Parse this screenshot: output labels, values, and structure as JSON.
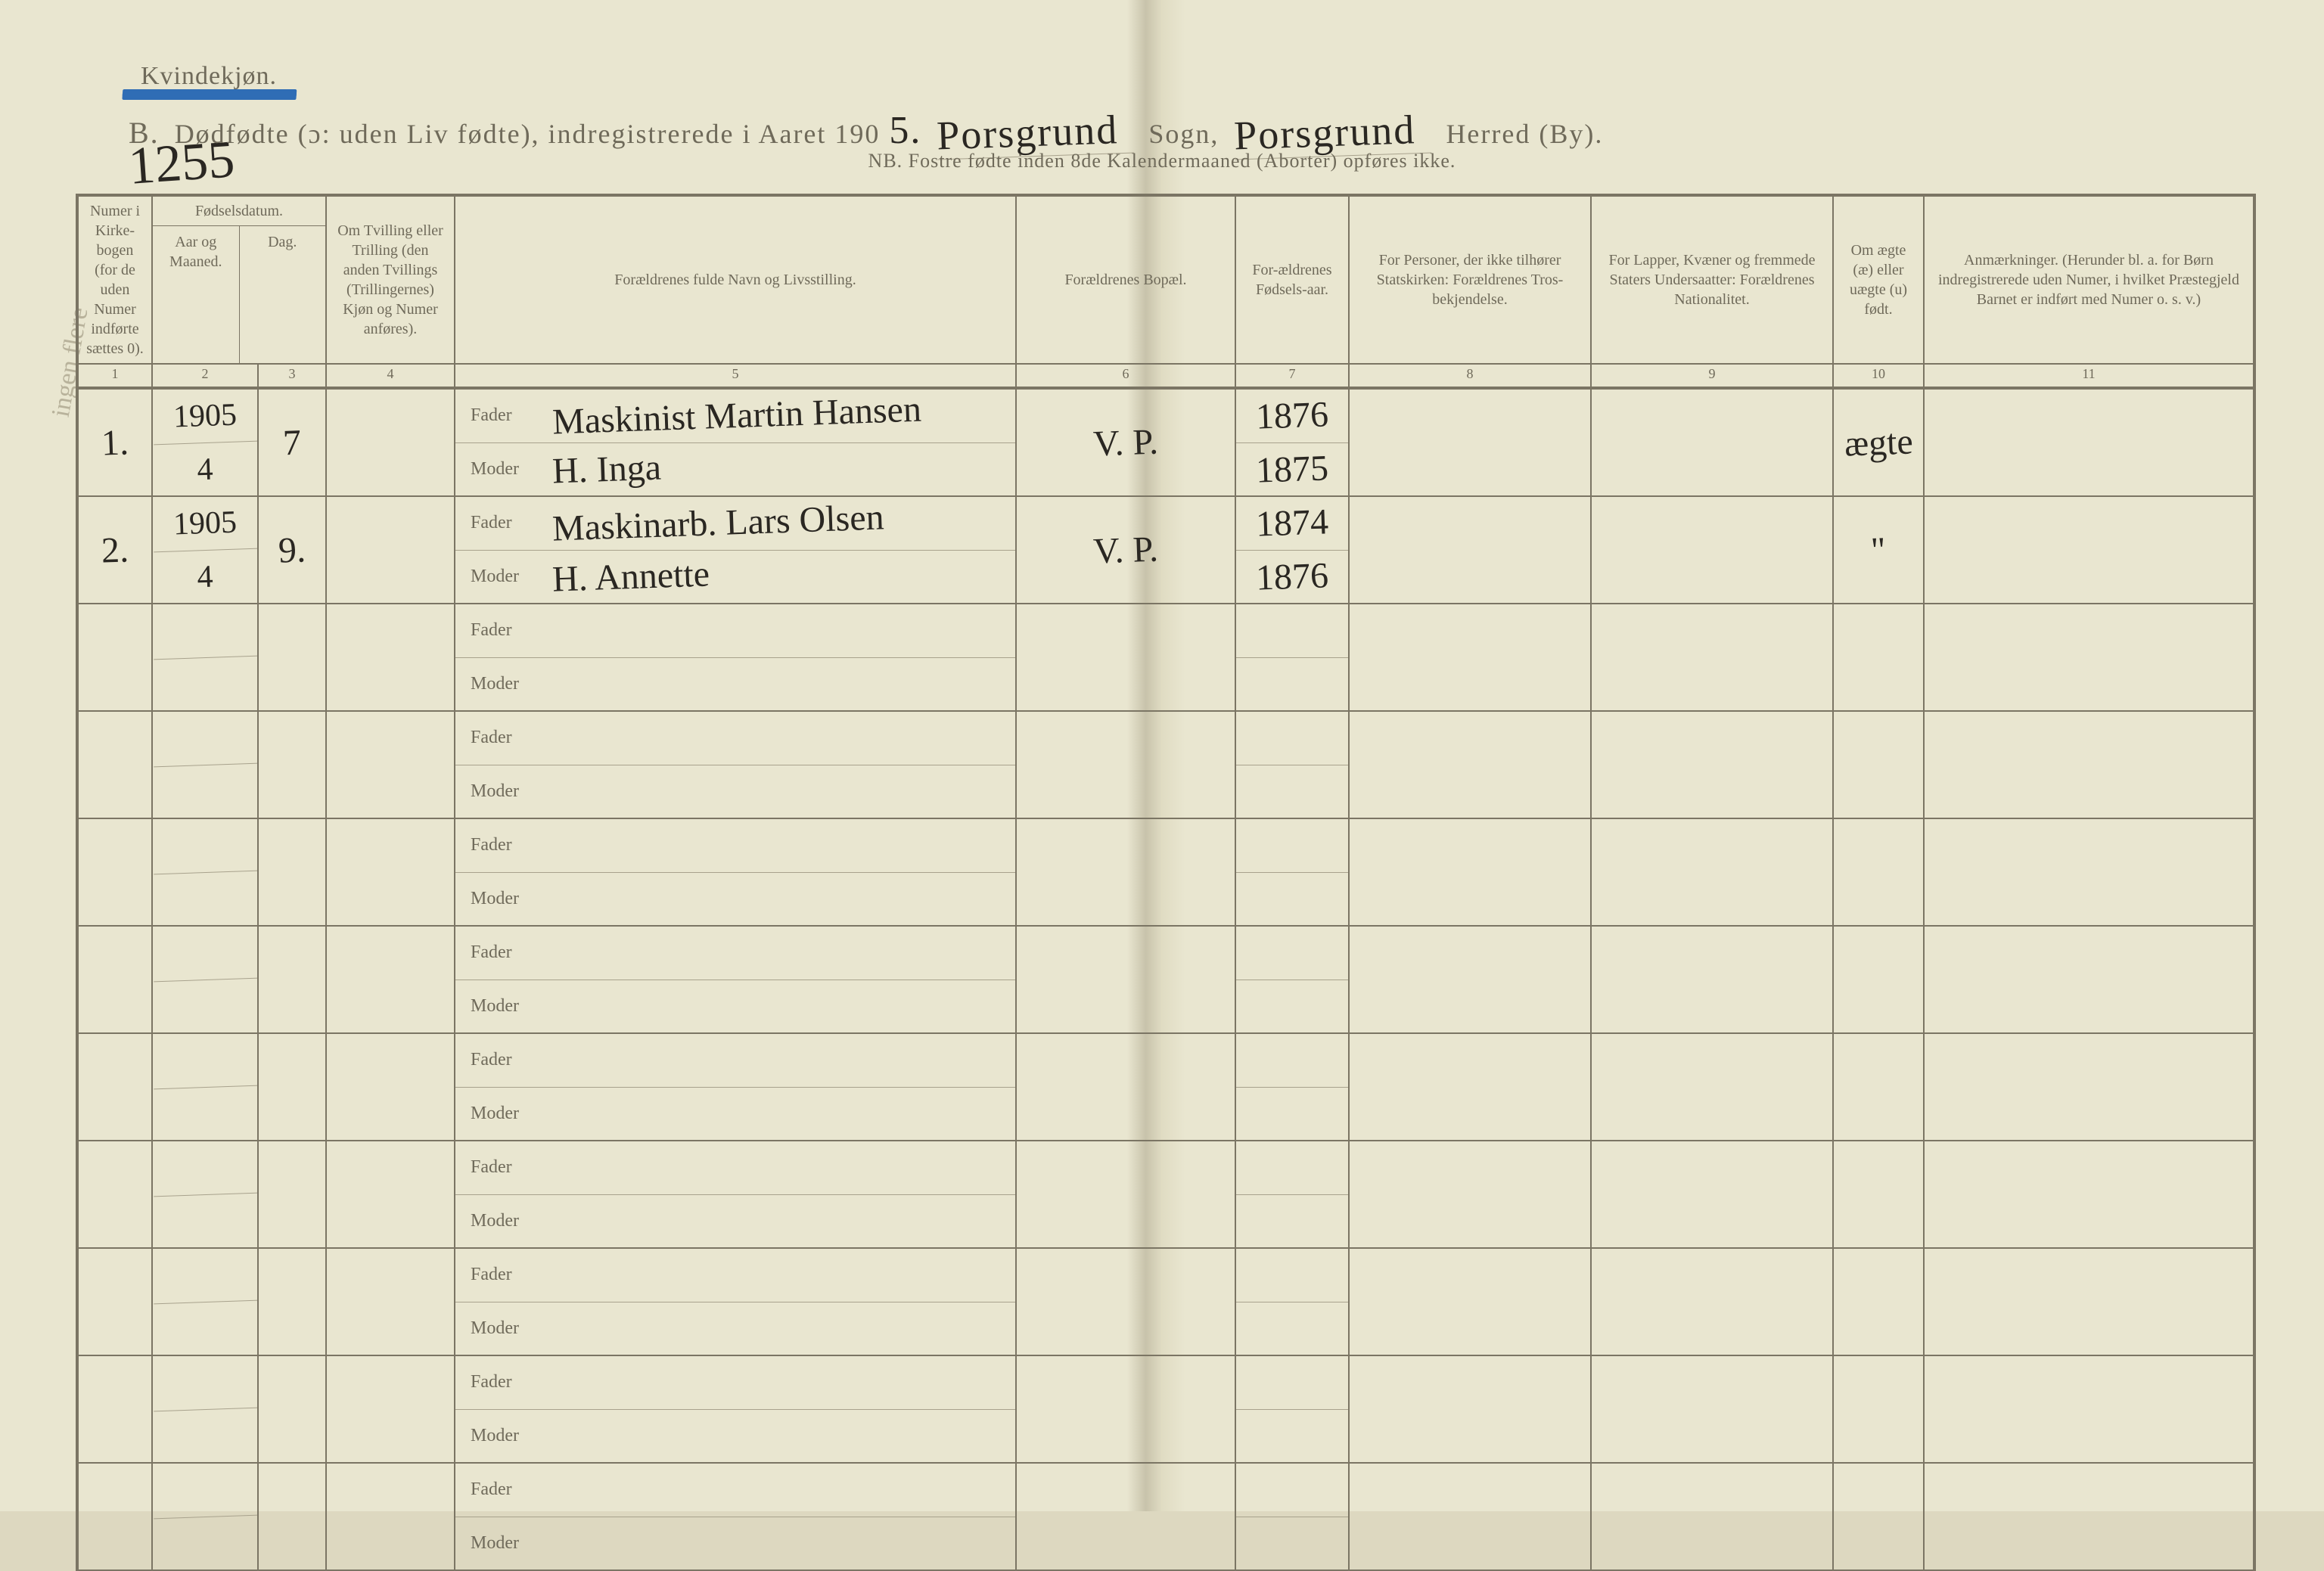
{
  "gender_label": "Kvindekjøn.",
  "handwritten_page_number": "1255",
  "margin_scribble": "ingen flere",
  "title": {
    "lead": "B.",
    "main": "Dødfødte (ɔ: uden Liv fødte), indregistrerede i Aaret 190",
    "year_digit": "5.",
    "sogn_hand": "Porsgrund",
    "sogn_label": "Sogn,",
    "herred_hand": "Porsgrund",
    "herred_label": "Herred (By)."
  },
  "subtitle": "NB. Fostre fødte inden 8de Kalendermaaned (Aborter) opføres ikke.",
  "columns": {
    "c1": "Numer i Kirke-bogen (for de uden Numer indførte sættes 0).",
    "c2_top": "Fødselsdatum.",
    "c2_a": "Aar og Maaned.",
    "c2_b": "Dag.",
    "c4": "Om Tvilling eller Trilling (den anden Tvillings (Trillingernes) Kjøn og Numer anføres).",
    "c5": "Forældrenes fulde Navn og Livsstilling.",
    "c6": "Forældrenes Bopæl.",
    "c7": "For-ældrenes Fødsels-aar.",
    "c8": "For Personer, der ikke tilhører Statskirken: Forældrenes Tros-bekjendelse.",
    "c9": "For Lapper, Kvæner og fremmede Staters Undersaatter: Forældrenes Nationalitet.",
    "c10": "Om ægte (æ) eller uægte (u) født.",
    "c11": "Anmærkninger. (Herunder bl. a. for Børn indregistrerede uden Numer, i hvilket Præstegjeld Barnet er indført med Numer o. s. v.)"
  },
  "col_numbers": [
    "1",
    "2",
    "3",
    "4",
    "5",
    "6",
    "7",
    "8",
    "9",
    "10",
    "11"
  ],
  "role_labels": {
    "father": "Fader",
    "mother": "Moder"
  },
  "entries": [
    {
      "num": "1.",
      "year": "1905",
      "month": "4",
      "day": "7",
      "father": "Maskinist Martin Hansen",
      "mother": "H. Inga",
      "bopael": "V. P.",
      "father_birth": "1876",
      "mother_birth": "1875",
      "legit": "ægte"
    },
    {
      "num": "2.",
      "year": "1905",
      "month": "4",
      "day": "9.",
      "father": "Maskinarb. Lars Olsen",
      "mother": "H. Annette",
      "bopael": "V. P.",
      "father_birth": "1874",
      "mother_birth": "1876",
      "legit": "\""
    }
  ],
  "empty_row_count": 9,
  "colors": {
    "paper": "#e9e6d0",
    "ink_print": "#6f6a5a",
    "ink_hand": "#2a2722",
    "line": "#7b7564",
    "underline_blue": "#2f6db5"
  }
}
